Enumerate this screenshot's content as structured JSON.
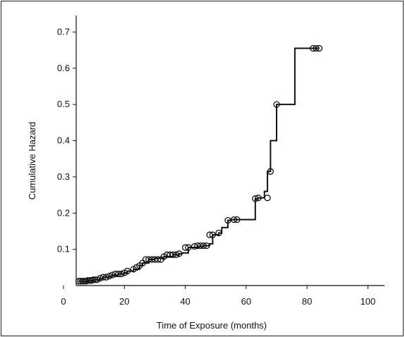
{
  "chart_data": {
    "type": "line",
    "xlabel": "Time of Exposure (months)",
    "ylabel": "Cumulative Hazard",
    "xlim": [
      0,
      105
    ],
    "ylim": [
      0,
      0.73
    ],
    "xticks": [
      0,
      20,
      40,
      60,
      80,
      100
    ],
    "yticks": [
      0.1,
      0.2,
      0.3,
      0.4,
      0.5,
      0.6,
      0.7
    ],
    "grid": false,
    "colors": {
      "line": "#111111"
    },
    "series": [
      {
        "style": "step",
        "x": [
          5,
          8,
          10,
          12,
          13,
          15,
          16,
          18,
          20,
          21,
          23,
          25,
          26,
          28,
          30,
          33,
          36,
          38,
          39,
          41,
          44,
          46,
          48,
          49,
          51,
          52,
          54,
          55,
          57,
          60,
          63,
          64,
          66,
          67,
          68,
          69,
          70,
          72,
          75,
          76,
          80,
          84
        ],
        "y": [
          0.012,
          0.014,
          0.016,
          0.02,
          0.023,
          0.026,
          0.029,
          0.032,
          0.035,
          0.04,
          0.045,
          0.055,
          0.062,
          0.072,
          0.075,
          0.08,
          0.085,
          0.088,
          0.09,
          0.105,
          0.108,
          0.11,
          0.115,
          0.14,
          0.145,
          0.16,
          0.18,
          0.182,
          0.182,
          0.182,
          0.24,
          0.242,
          0.26,
          0.315,
          0.4,
          0.4,
          0.5,
          0.5,
          0.5,
          0.655,
          0.655,
          0.655
        ]
      }
    ],
    "censored": {
      "x": [
        5,
        5.6,
        6.2,
        6.8,
        7.4,
        8,
        8.6,
        9.2,
        9.8,
        10.4,
        11,
        12,
        13,
        14,
        15,
        16,
        17,
        18,
        19,
        20,
        21,
        23,
        24,
        25,
        26,
        27,
        28,
        29,
        30,
        31,
        32,
        33,
        34,
        35,
        36,
        37,
        38,
        40,
        41,
        43,
        44,
        45,
        46,
        47,
        48,
        49,
        51,
        54,
        56,
        57,
        63,
        64,
        67,
        68,
        70,
        82,
        83,
        84
      ],
      "y": [
        0.012,
        0.012,
        0.012,
        0.012,
        0.012,
        0.014,
        0.014,
        0.014,
        0.016,
        0.016,
        0.016,
        0.02,
        0.023,
        0.023,
        0.026,
        0.029,
        0.032,
        0.032,
        0.032,
        0.035,
        0.04,
        0.045,
        0.05,
        0.055,
        0.062,
        0.072,
        0.072,
        0.072,
        0.072,
        0.072,
        0.072,
        0.08,
        0.085,
        0.085,
        0.085,
        0.085,
        0.088,
        0.105,
        0.105,
        0.108,
        0.11,
        0.11,
        0.11,
        0.11,
        0.14,
        0.14,
        0.145,
        0.18,
        0.182,
        0.182,
        0.24,
        0.242,
        0.242,
        0.315,
        0.5,
        0.655,
        0.655,
        0.655
      ]
    }
  }
}
